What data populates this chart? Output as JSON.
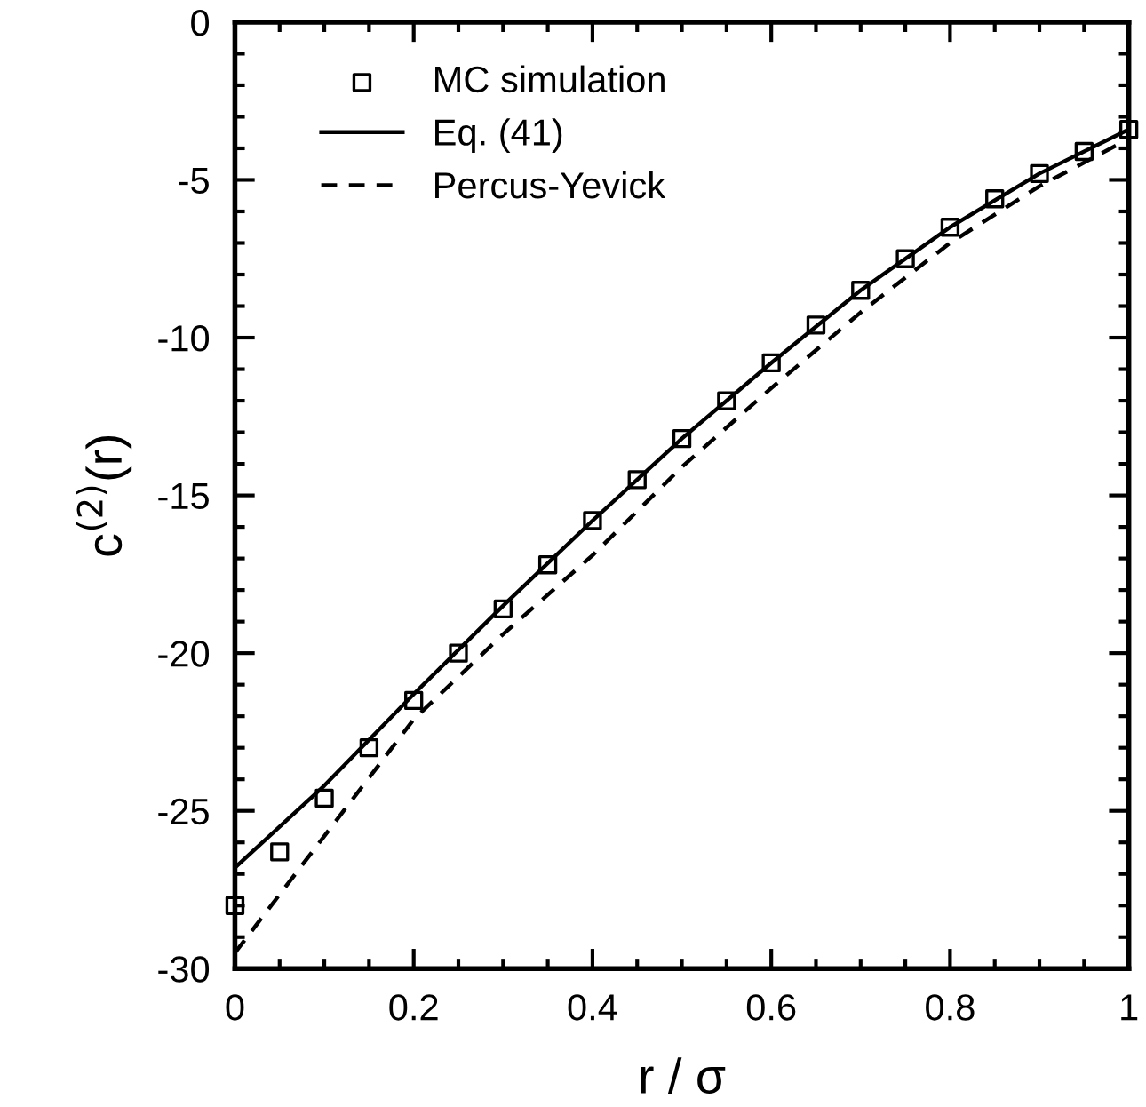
{
  "chart_data": {
    "type": "line",
    "xlabel": "r / σ",
    "ylabel": "c$^{(2)}$(r)",
    "xlim": [
      0,
      1
    ],
    "ylim": [
      -30,
      0
    ],
    "xticks": [
      0,
      0.2,
      0.4,
      0.6,
      0.8,
      1
    ],
    "yticks": [
      -30,
      -25,
      -20,
      -15,
      -10,
      -5,
      0
    ],
    "grid": false,
    "legend": "top left",
    "series": [
      {
        "name": "MC simulation",
        "type": "scatter",
        "marker": "square",
        "color": "#000000",
        "x": [
          0,
          0.05,
          0.1,
          0.15,
          0.2,
          0.25,
          0.3,
          0.35,
          0.4,
          0.45,
          0.5,
          0.55,
          0.6,
          0.65,
          0.7,
          0.75,
          0.8,
          0.85,
          0.9,
          0.95,
          1.0
        ],
        "values": [
          -28.0,
          -26.3,
          -24.6,
          -23.0,
          -21.5,
          -20.0,
          -18.6,
          -17.2,
          -15.8,
          -14.5,
          -13.2,
          -12.0,
          -10.8,
          -9.6,
          -8.5,
          -7.5,
          -6.5,
          -5.6,
          -4.8,
          -4.1,
          -3.4
        ]
      },
      {
        "name": "Eq. (41)",
        "line_style": "solid",
        "color": "#000000",
        "x": [
          0,
          0.1,
          0.2,
          0.3,
          0.4,
          0.5,
          0.6,
          0.7,
          0.8,
          0.9,
          1.0
        ],
        "values": [
          -26.8,
          -24.2,
          -21.3,
          -18.5,
          -15.8,
          -13.2,
          -10.8,
          -8.5,
          -6.5,
          -4.8,
          -3.4
        ]
      },
      {
        "name": "Percus-Yevick",
        "line_style": "dashed",
        "color": "#000000",
        "x": [
          0,
          0.1,
          0.2,
          0.3,
          0.4,
          0.5,
          0.6,
          0.7,
          0.8,
          0.9,
          1.0
        ],
        "values": [
          -29.5,
          -25.8,
          -22.1,
          -19.4,
          -16.9,
          -14.1,
          -11.6,
          -9.2,
          -7.0,
          -5.2,
          -3.7
        ]
      }
    ]
  }
}
